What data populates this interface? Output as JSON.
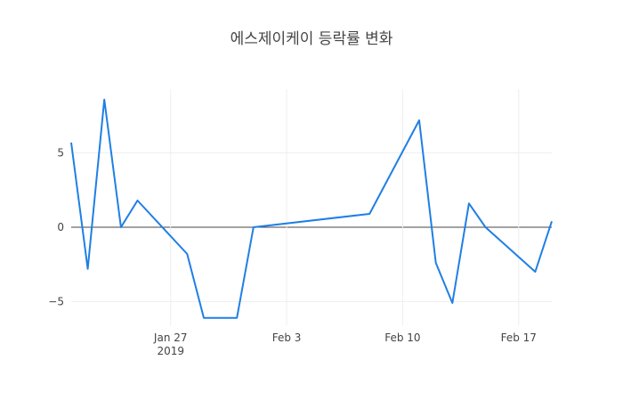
{
  "chart_data": {
    "type": "line",
    "title": "에스제이케이 등락률 변화",
    "x": [
      "2019-01-21",
      "2019-01-22",
      "2019-01-23",
      "2019-01-24",
      "2019-01-25",
      "2019-01-28",
      "2019-01-29",
      "2019-01-31",
      "2019-02-01",
      "2019-02-08",
      "2019-02-11",
      "2019-02-12",
      "2019-02-13",
      "2019-02-14",
      "2019-02-15",
      "2019-02-18",
      "2019-02-19"
    ],
    "series": [
      {
        "color": "#1f7fe5",
        "values": [
          5.7,
          -2.8,
          8.6,
          0,
          1.8,
          -1.8,
          -6.1,
          -6.1,
          0,
          0.9,
          7.2,
          -2.4,
          -5.1,
          1.6,
          0,
          -3.0,
          0.4
        ]
      }
    ],
    "xlim": [
      "2019-01-21",
      "2019-02-19"
    ],
    "xticks": [
      {
        "value": "2019-01-27",
        "label": "Jan 27\n2019"
      },
      {
        "value": "2019-02-03",
        "label": "Feb 3"
      },
      {
        "value": "2019-02-10",
        "label": "Feb 10"
      },
      {
        "value": "2019-02-17",
        "label": "Feb 17"
      }
    ],
    "ylim": [
      -6.6,
      9.3
    ],
    "yticks": [
      {
        "value": -5,
        "label": "−5"
      },
      0,
      5
    ],
    "grid": true
  }
}
